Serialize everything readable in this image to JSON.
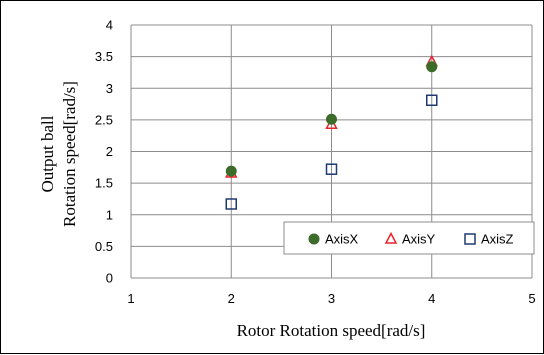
{
  "chart_data": {
    "type": "scatter",
    "xlabel": "Rotor Rotation speed[rad/s]",
    "ylabel_lines": [
      "Output ball",
      "Rotation speed[rad/s]"
    ],
    "xlim": [
      1,
      5
    ],
    "ylim": [
      0,
      4
    ],
    "x_ticks": [
      1,
      2,
      3,
      4,
      5
    ],
    "y_ticks": [
      0,
      0.5,
      1,
      1.5,
      2,
      2.5,
      3,
      3.5,
      4
    ],
    "grid": true,
    "legend_position": "bottom-right",
    "series": [
      {
        "name": "AxisX",
        "marker": "filled-circle",
        "color": "#3d6b2a",
        "x": [
          2,
          3,
          4
        ],
        "y": [
          1.69,
          2.51,
          3.34
        ]
      },
      {
        "name": "AxisY",
        "marker": "open-triangle",
        "color": "#e8222a",
        "x": [
          2,
          3,
          4
        ],
        "y": [
          1.66,
          2.43,
          3.42
        ]
      },
      {
        "name": "AxisZ",
        "marker": "open-square",
        "color": "#1f3a73",
        "x": [
          2,
          3,
          4
        ],
        "y": [
          1.17,
          1.72,
          2.81
        ]
      }
    ]
  }
}
